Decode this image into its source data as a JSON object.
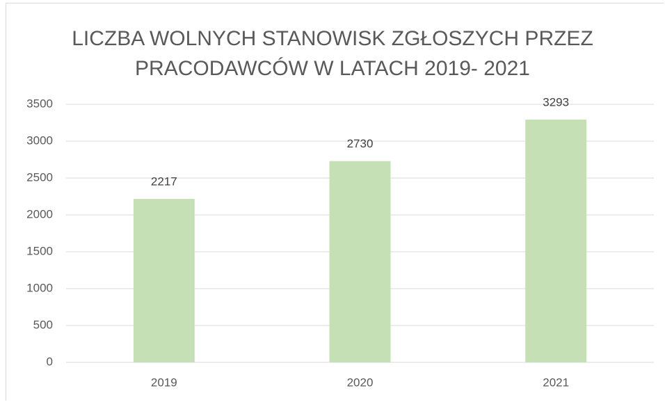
{
  "chart_data": {
    "type": "bar",
    "title": "LICZBA WOLNYCH STANOWISK ZGŁOSZYCH PRZEZ PRACODAWCÓW W LATACH 2019- 2021",
    "categories": [
      "2019",
      "2020",
      "2021"
    ],
    "values": [
      2217,
      2730,
      3293
    ],
    "color": "#c5e0b4",
    "ylim": [
      0,
      3500
    ],
    "yticks": [
      0,
      500,
      1000,
      1500,
      2000,
      2500,
      3000,
      3500
    ],
    "grid": true
  }
}
